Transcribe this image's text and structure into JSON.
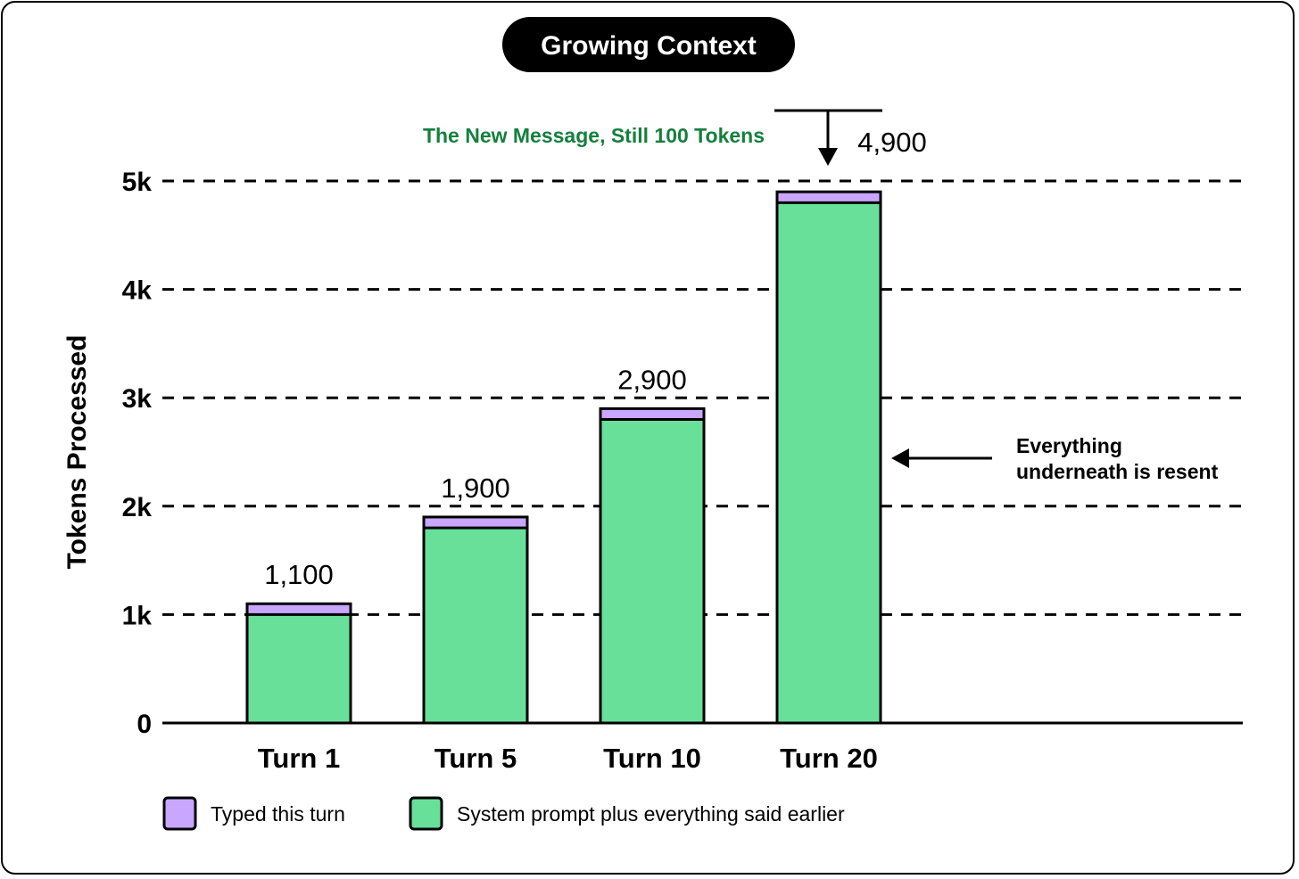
{
  "chart_data": {
    "type": "bar",
    "stacked": true,
    "title": "Growing Context",
    "ylabel": "Tokens Processed",
    "xlabel": "",
    "ylim": [
      0,
      5000
    ],
    "yticks": [
      {
        "value": 0,
        "label": "0"
      },
      {
        "value": 1000,
        "label": "1k"
      },
      {
        "value": 2000,
        "label": "2k"
      },
      {
        "value": 3000,
        "label": "3k"
      },
      {
        "value": 4000,
        "label": "4k"
      },
      {
        "value": 5000,
        "label": "5k"
      }
    ],
    "grid": "dashed horizontal",
    "categories": [
      "Turn 1",
      "Turn 5",
      "Turn 10",
      "Turn 20"
    ],
    "series": [
      {
        "name": "System prompt plus everything said earlier",
        "color": "#68E09A",
        "values": [
          1000,
          1800,
          2800,
          4800
        ]
      },
      {
        "name": "Typed this turn",
        "color": "#C9A6FF",
        "values": [
          100,
          100,
          100,
          100
        ]
      }
    ],
    "totals": [
      1100,
      1900,
      2900,
      4900
    ],
    "total_labels": [
      "1,100",
      "1,900",
      "2,900",
      "4,900"
    ],
    "legend": {
      "position": "bottom-left",
      "items": [
        {
          "label": "Typed this turn",
          "color": "#C9A6FF"
        },
        {
          "label": "System prompt plus everything said earlier",
          "color": "#68E09A"
        }
      ]
    },
    "annotations": {
      "new_message": {
        "text": "The New Message, Still 100 Tokens",
        "color": "#15803D"
      },
      "resent": {
        "lines": [
          "Everything",
          "underneath is resent"
        ]
      }
    }
  }
}
